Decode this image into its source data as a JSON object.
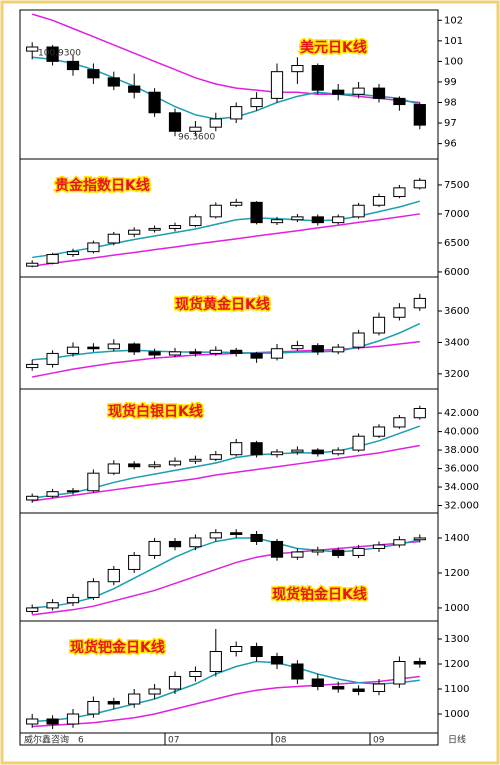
{
  "chart_data": [
    {
      "type": "candlestick",
      "title": "美元日K线",
      "ylim": [
        95.3,
        102.5
      ],
      "yticks": [
        96,
        97,
        98,
        99,
        100,
        101,
        102
      ],
      "annotations": [
        "100.9300",
        "96.3600"
      ],
      "ohlc": [
        [
          100.5,
          100.93,
          100.1,
          100.7
        ],
        [
          100.7,
          100.8,
          99.8,
          100.0
        ],
        [
          100.0,
          100.3,
          99.3,
          99.6
        ],
        [
          99.6,
          99.9,
          98.9,
          99.2
        ],
        [
          99.2,
          99.5,
          98.6,
          98.8
        ],
        [
          98.8,
          99.4,
          98.2,
          98.5
        ],
        [
          98.5,
          98.7,
          97.3,
          97.5
        ],
        [
          97.5,
          97.7,
          96.36,
          96.6
        ],
        [
          96.6,
          97.1,
          96.4,
          96.8
        ],
        [
          96.8,
          97.5,
          96.6,
          97.2
        ],
        [
          97.2,
          98.0,
          97.0,
          97.8
        ],
        [
          97.8,
          98.5,
          97.6,
          98.2
        ],
        [
          98.2,
          99.9,
          98.0,
          99.5
        ],
        [
          99.5,
          100.2,
          98.9,
          99.8
        ],
        [
          99.8,
          99.9,
          98.4,
          98.6
        ],
        [
          98.6,
          98.9,
          98.1,
          98.4
        ],
        [
          98.4,
          99.0,
          98.2,
          98.7
        ],
        [
          98.7,
          98.9,
          98.0,
          98.2
        ],
        [
          98.2,
          98.3,
          97.6,
          97.9
        ],
        [
          97.9,
          98.0,
          96.7,
          96.9
        ]
      ],
      "series": [
        {
          "color": "#e020e0",
          "values": [
            102.3,
            102.0,
            101.6,
            101.2,
            100.8,
            100.4,
            100.0,
            99.6,
            99.2,
            98.9,
            98.7,
            98.6,
            98.5,
            98.5,
            98.4,
            98.4,
            98.3,
            98.2,
            98.1,
            98.0
          ]
        },
        {
          "color": "#1a9fb0",
          "values": [
            100.2,
            100.1,
            99.9,
            99.6,
            99.2,
            98.8,
            98.3,
            97.8,
            97.4,
            97.2,
            97.3,
            97.6,
            98.0,
            98.3,
            98.5,
            98.4,
            98.4,
            98.3,
            98.2,
            97.9
          ]
        }
      ]
    },
    {
      "type": "candlestick",
      "title": "贵金指数日K线",
      "ylim": [
        5930,
        7930
      ],
      "yticks": [
        6000,
        6500,
        7000,
        7500
      ],
      "ohlc": [
        [
          6100,
          6200,
          6080,
          6150
        ],
        [
          6150,
          6330,
          6130,
          6300
        ],
        [
          6300,
          6400,
          6260,
          6350
        ],
        [
          6350,
          6540,
          6320,
          6500
        ],
        [
          6500,
          6690,
          6460,
          6650
        ],
        [
          6650,
          6770,
          6600,
          6720
        ],
        [
          6720,
          6800,
          6680,
          6750
        ],
        [
          6750,
          6850,
          6700,
          6800
        ],
        [
          6800,
          6990,
          6770,
          6950
        ],
        [
          6950,
          7200,
          6920,
          7150
        ],
        [
          7150,
          7260,
          7120,
          7200
        ],
        [
          7200,
          7220,
          6820,
          6850
        ],
        [
          6850,
          6950,
          6810,
          6900
        ],
        [
          6900,
          7000,
          6860,
          6950
        ],
        [
          6950,
          6990,
          6800,
          6850
        ],
        [
          6850,
          6990,
          6820,
          6950
        ],
        [
          6950,
          7190,
          6920,
          7150
        ],
        [
          7150,
          7350,
          7120,
          7300
        ],
        [
          7300,
          7500,
          7270,
          7450
        ],
        [
          7450,
          7620,
          7420,
          7580
        ]
      ],
      "series": [
        {
          "color": "#e020e0",
          "values": [
            6100,
            6150,
            6195,
            6240,
            6290,
            6335,
            6385,
            6430,
            6480,
            6525,
            6570,
            6620,
            6665,
            6710,
            6760,
            6805,
            6855,
            6900,
            6950,
            7000
          ]
        },
        {
          "color": "#1a9fb0",
          "values": [
            6250,
            6300,
            6360,
            6420,
            6490,
            6560,
            6620,
            6680,
            6740,
            6820,
            6900,
            6930,
            6920,
            6900,
            6880,
            6900,
            6960,
            7040,
            7120,
            7220
          ]
        }
      ]
    },
    {
      "type": "candlestick",
      "title": "现货黄金日K线",
      "ylim": [
        3110,
        3810
      ],
      "yticks": [
        3200,
        3400,
        3600
      ],
      "ohlc": [
        [
          3240,
          3290,
          3220,
          3260
        ],
        [
          3260,
          3350,
          3240,
          3330
        ],
        [
          3330,
          3400,
          3310,
          3370
        ],
        [
          3370,
          3395,
          3340,
          3360
        ],
        [
          3360,
          3420,
          3345,
          3390
        ],
        [
          3390,
          3400,
          3320,
          3340
        ],
        [
          3340,
          3360,
          3300,
          3320
        ],
        [
          3320,
          3365,
          3305,
          3340
        ],
        [
          3340,
          3360,
          3310,
          3330
        ],
        [
          3330,
          3375,
          3315,
          3350
        ],
        [
          3350,
          3365,
          3310,
          3330
        ],
        [
          3330,
          3340,
          3270,
          3300
        ],
        [
          3300,
          3390,
          3285,
          3360
        ],
        [
          3360,
          3410,
          3345,
          3380
        ],
        [
          3380,
          3395,
          3320,
          3340
        ],
        [
          3340,
          3390,
          3325,
          3370
        ],
        [
          3370,
          3480,
          3355,
          3460
        ],
        [
          3460,
          3590,
          3445,
          3560
        ],
        [
          3560,
          3650,
          3540,
          3620
        ],
        [
          3620,
          3710,
          3600,
          3680
        ]
      ],
      "series": [
        {
          "color": "#e020e0",
          "values": [
            3180,
            3205,
            3230,
            3250,
            3270,
            3285,
            3300,
            3310,
            3320,
            3325,
            3330,
            3335,
            3340,
            3345,
            3350,
            3355,
            3365,
            3375,
            3390,
            3405
          ]
        },
        {
          "color": "#1a9fb0",
          "values": [
            3290,
            3300,
            3320,
            3335,
            3345,
            3350,
            3345,
            3340,
            3338,
            3338,
            3336,
            3332,
            3332,
            3338,
            3340,
            3345,
            3370,
            3410,
            3460,
            3520
          ]
        }
      ]
    },
    {
      "type": "candlestick",
      "title": "现货白银日K线",
      "ylim": [
        31.3,
        44.5
      ],
      "yticks": [
        {
          "value": 32,
          "label": "32.000"
        },
        {
          "value": 34,
          "label": "34.000"
        },
        {
          "value": 36,
          "label": "36.000"
        },
        {
          "value": 38,
          "label": "38.000"
        },
        {
          "value": 40,
          "label": "40.000"
        },
        {
          "value": 42,
          "label": "42.000"
        }
      ],
      "ohlc": [
        [
          32.6,
          33.3,
          32.3,
          33.0
        ],
        [
          33.0,
          33.8,
          32.8,
          33.5
        ],
        [
          33.5,
          33.9,
          33.2,
          33.6
        ],
        [
          33.6,
          35.9,
          33.4,
          35.5
        ],
        [
          35.5,
          36.9,
          35.3,
          36.5
        ],
        [
          36.5,
          36.8,
          35.9,
          36.2
        ],
        [
          36.2,
          36.8,
          36.0,
          36.4
        ],
        [
          36.4,
          37.2,
          36.2,
          36.8
        ],
        [
          36.8,
          37.4,
          36.5,
          37.0
        ],
        [
          37.0,
          37.9,
          36.8,
          37.5
        ],
        [
          37.5,
          39.2,
          37.3,
          38.8
        ],
        [
          38.8,
          39.0,
          37.2,
          37.5
        ],
        [
          37.5,
          38.1,
          37.2,
          37.8
        ],
        [
          37.8,
          38.4,
          37.5,
          38.0
        ],
        [
          38.0,
          38.2,
          37.3,
          37.6
        ],
        [
          37.6,
          38.3,
          37.4,
          38.0
        ],
        [
          38.0,
          39.8,
          37.8,
          39.5
        ],
        [
          39.5,
          40.8,
          39.3,
          40.5
        ],
        [
          40.5,
          41.8,
          40.3,
          41.5
        ],
        [
          41.5,
          42.8,
          41.3,
          42.5
        ]
      ],
      "series": [
        {
          "color": "#e020e0",
          "values": [
            32.5,
            32.8,
            33.1,
            33.4,
            33.7,
            34.0,
            34.3,
            34.6,
            34.9,
            35.3,
            35.6,
            35.9,
            36.2,
            36.5,
            36.8,
            37.1,
            37.4,
            37.7,
            38.1,
            38.5
          ]
        },
        {
          "color": "#1a9fb0",
          "values": [
            32.8,
            33.1,
            33.4,
            33.9,
            34.5,
            35.0,
            35.4,
            35.8,
            36.2,
            36.6,
            37.2,
            37.5,
            37.6,
            37.7,
            37.7,
            37.9,
            38.4,
            39.0,
            39.8,
            40.6
          ]
        }
      ]
    },
    {
      "type": "candlestick",
      "title": "现货铂金日K线",
      "ylim": [
        931,
        1537
      ],
      "yticks": [
        1000,
        1200,
        1400
      ],
      "ohlc": [
        [
          980,
          1020,
          965,
          1000
        ],
        [
          1000,
          1050,
          985,
          1030
        ],
        [
          1030,
          1080,
          1010,
          1060
        ],
        [
          1060,
          1170,
          1045,
          1150
        ],
        [
          1150,
          1240,
          1130,
          1220
        ],
        [
          1220,
          1320,
          1200,
          1300
        ],
        [
          1300,
          1400,
          1280,
          1380
        ],
        [
          1380,
          1400,
          1330,
          1350
        ],
        [
          1350,
          1420,
          1330,
          1400
        ],
        [
          1400,
          1450,
          1380,
          1430
        ],
        [
          1430,
          1450,
          1400,
          1420
        ],
        [
          1420,
          1440,
          1360,
          1380
        ],
        [
          1380,
          1395,
          1270,
          1290
        ],
        [
          1290,
          1340,
          1275,
          1320
        ],
        [
          1320,
          1350,
          1300,
          1330
        ],
        [
          1330,
          1345,
          1285,
          1300
        ],
        [
          1300,
          1360,
          1285,
          1340
        ],
        [
          1340,
          1380,
          1320,
          1360
        ],
        [
          1360,
          1410,
          1345,
          1390
        ],
        [
          1390,
          1420,
          1375,
          1400
        ]
      ],
      "series": [
        {
          "color": "#e020e0",
          "values": [
            960,
            975,
            990,
            1010,
            1040,
            1070,
            1100,
            1140,
            1180,
            1220,
            1260,
            1290,
            1310,
            1320,
            1330,
            1340,
            1350,
            1360,
            1370,
            1380
          ]
        },
        {
          "color": "#1a9fb0",
          "values": [
            1000,
            1010,
            1030,
            1060,
            1110,
            1170,
            1230,
            1290,
            1340,
            1380,
            1400,
            1400,
            1370,
            1340,
            1330,
            1320,
            1330,
            1345,
            1365,
            1390
          ]
        }
      ]
    },
    {
      "type": "candlestick",
      "title": "现货钯金日K线",
      "ylim": [
        928,
        1368
      ],
      "yticks": [
        1000,
        1100,
        1200,
        1300
      ],
      "ohlc": [
        [
          960,
          1000,
          945,
          980
        ],
        [
          980,
          995,
          940,
          960
        ],
        [
          960,
          1020,
          945,
          1000
        ],
        [
          1000,
          1070,
          985,
          1050
        ],
        [
          1050,
          1065,
          1020,
          1040
        ],
        [
          1040,
          1100,
          1025,
          1080
        ],
        [
          1080,
          1120,
          1060,
          1100
        ],
        [
          1100,
          1170,
          1080,
          1150
        ],
        [
          1150,
          1190,
          1130,
          1170
        ],
        [
          1170,
          1340,
          1150,
          1250
        ],
        [
          1250,
          1290,
          1230,
          1270
        ],
        [
          1270,
          1285,
          1210,
          1230
        ],
        [
          1230,
          1245,
          1180,
          1200
        ],
        [
          1200,
          1215,
          1120,
          1140
        ],
        [
          1140,
          1160,
          1095,
          1110
        ],
        [
          1110,
          1130,
          1085,
          1100
        ],
        [
          1100,
          1115,
          1075,
          1090
        ],
        [
          1090,
          1140,
          1075,
          1120
        ],
        [
          1120,
          1230,
          1105,
          1210
        ],
        [
          1210,
          1225,
          1185,
          1200
        ]
      ],
      "series": [
        {
          "color": "#e020e0",
          "values": [
            950,
            955,
            960,
            965,
            975,
            985,
            1000,
            1020,
            1040,
            1060,
            1080,
            1095,
            1105,
            1110,
            1115,
            1120,
            1125,
            1130,
            1140,
            1150
          ]
        },
        {
          "color": "#1a9fb0",
          "values": [
            970,
            975,
            985,
            1000,
            1020,
            1040,
            1060,
            1090,
            1120,
            1160,
            1190,
            1210,
            1205,
            1185,
            1160,
            1140,
            1125,
            1120,
            1125,
            1135
          ]
        }
      ]
    }
  ],
  "x_axis": {
    "source": "威尔鑫咨询",
    "labels": [
      "6",
      "07",
      "08",
      "09"
    ],
    "end_label": "日线"
  }
}
